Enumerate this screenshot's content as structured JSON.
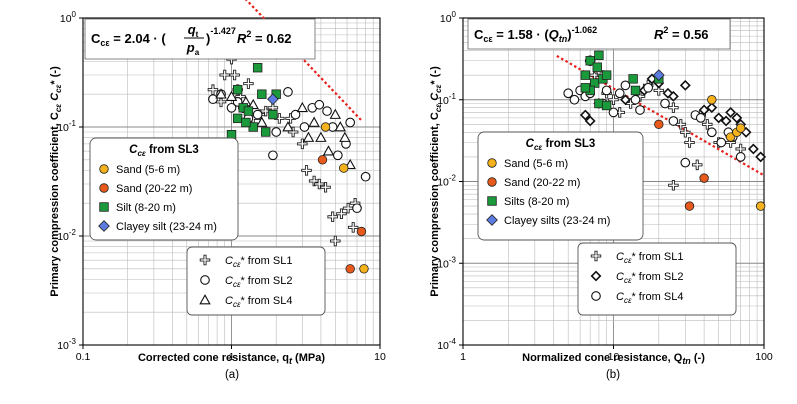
{
  "chart_data": [
    {
      "type": "scatter",
      "caption": "(a)",
      "xlabel": "Corrected cone resistance, q",
      "xlabel_sub": "t",
      "xlabel_unit": " (MPa)",
      "ylabel": "Primary compression coefficient, C",
      "ylabel_full": "Primary compression coefficient, Ccε Ccε* (-)",
      "xscale": "log",
      "yscale": "log",
      "xlim": [
        0.1,
        10
      ],
      "ylim": [
        0.001,
        1
      ],
      "xticks": [
        {
          "v": 0.1,
          "l": "0.1"
        },
        {
          "v": 1,
          "l": "1"
        },
        {
          "v": 10,
          "l": "10"
        }
      ],
      "yticks": [
        {
          "v": 0.001,
          "l": "10",
          "e": "-3"
        },
        {
          "v": 0.01,
          "l": "10",
          "e": "-2"
        },
        {
          "v": 0.1,
          "l": "10",
          "e": "-1"
        },
        {
          "v": 1,
          "l": "10",
          "e": "0"
        }
      ],
      "equation": {
        "lhs": "C",
        "lhs_sub": "cε",
        "coef": "2.04",
        "frac_num": "q",
        "frac_num_sub": "t",
        "frac_den": "p",
        "frac_den_sub": "a",
        "exponent": "-1.427",
        "r2_label": "R",
        "r2_value": "= 0.62"
      },
      "trendline": {
        "coef": 2.04,
        "exp": -1.427,
        "xrange": [
          1.0,
          7.5
        ],
        "color": "#e8201c"
      },
      "legend_sl3": {
        "title": "C",
        "title_sub": "cε",
        "title_rest": " from SL3",
        "entries": [
          {
            "label": "Sand (5-6 m)",
            "marker": "circle",
            "fill": "#f5b21c"
          },
          {
            "label": "Sand (20-22 m)",
            "marker": "circle",
            "fill": "#e85a1c"
          },
          {
            "label": "Silt (8-20 m)",
            "marker": "square",
            "fill": "#1a9a3a"
          },
          {
            "label": "Clayey silt (23-24 m)",
            "marker": "diamond",
            "fill": "#5b7be0"
          }
        ]
      },
      "legend_sl": {
        "entries": [
          {
            "label": "* from SL1",
            "sym": "C",
            "sub": "cε",
            "marker": "plus"
          },
          {
            "label": "* from SL2",
            "sym": "C",
            "sub": "cε",
            "marker": "open-circle"
          },
          {
            "label": "* from SL4",
            "sym": "C",
            "sub": "cε",
            "marker": "open-triangle"
          }
        ]
      },
      "series": [
        {
          "name": "Sand (5-6 m)",
          "marker": "circle",
          "fill": "#f5b21c",
          "points": [
            [
              4.3,
              0.1
            ],
            [
              5.7,
              0.042
            ],
            [
              7.8,
              0.005
            ]
          ]
        },
        {
          "name": "Sand (20-22 m)",
          "marker": "circle",
          "fill": "#e85a1c",
          "points": [
            [
              4.1,
              0.05
            ],
            [
              6.3,
              0.005
            ],
            [
              7.5,
              0.011
            ]
          ]
        },
        {
          "name": "Silt (8-20 m)",
          "marker": "square",
          "fill": "#1a9a3a",
          "points": [
            [
              1.1,
              0.22
            ],
            [
              1.2,
              0.15
            ],
            [
              1.5,
              0.35
            ],
            [
              1.6,
              0.2
            ],
            [
              1.3,
              0.14
            ],
            [
              1.1,
              0.12
            ],
            [
              1.7,
              0.09
            ],
            [
              1.4,
              0.1
            ],
            [
              1.9,
              0.13
            ],
            [
              1.0,
              0.085
            ],
            [
              2.0,
              0.2
            ],
            [
              1.25,
              0.11
            ]
          ]
        },
        {
          "name": "Clayey silt (23-24 m)",
          "marker": "diamond",
          "fill": "#5b7be0",
          "points": [
            [
              1.9,
              0.18
            ]
          ]
        },
        {
          "name": "SL1",
          "marker": "plus",
          "points": [
            [
              0.75,
              0.22
            ],
            [
              0.85,
              0.17
            ],
            [
              0.9,
              0.3
            ],
            [
              1.0,
              0.42
            ],
            [
              1.05,
              0.3
            ],
            [
              1.1,
              0.22
            ],
            [
              1.15,
              0.19
            ],
            [
              1.2,
              0.15
            ],
            [
              1.3,
              0.25
            ],
            [
              1.4,
              0.12
            ],
            [
              1.55,
              0.13
            ],
            [
              1.7,
              0.14
            ],
            [
              1.9,
              0.15
            ],
            [
              2.1,
              0.12
            ],
            [
              2.5,
              0.12
            ],
            [
              2.6,
              0.09
            ],
            [
              3.0,
              0.07
            ],
            [
              3.2,
              0.04
            ],
            [
              3.6,
              0.032
            ],
            [
              3.9,
              0.03
            ],
            [
              4.3,
              0.028
            ],
            [
              4.8,
              0.015
            ],
            [
              5.5,
              0.016
            ],
            [
              6.1,
              0.018
            ],
            [
              6.6,
              0.012
            ],
            [
              5.0,
              0.009
            ],
            [
              6.8,
              0.02
            ]
          ]
        },
        {
          "name": "SL2",
          "marker": "open-circle",
          "points": [
            [
              0.75,
              0.18
            ],
            [
              0.85,
              0.2
            ],
            [
              1.0,
              0.15
            ],
            [
              1.1,
              0.17
            ],
            [
              1.3,
              0.12
            ],
            [
              1.5,
              0.13
            ],
            [
              1.9,
              0.055
            ],
            [
              2.0,
              0.09
            ],
            [
              2.4,
              0.21
            ],
            [
              2.7,
              0.13
            ],
            [
              3.1,
              0.1
            ],
            [
              3.5,
              0.15
            ],
            [
              3.9,
              0.16
            ],
            [
              4.4,
              0.14
            ],
            [
              4.8,
              0.1
            ],
            [
              5.2,
              0.055
            ],
            [
              5.9,
              0.07
            ],
            [
              6.3,
              0.11
            ],
            [
              7.0,
              0.018
            ],
            [
              8.0,
              0.035
            ]
          ]
        },
        {
          "name": "SL4",
          "marker": "open-triangle",
          "points": [
            [
              0.85,
              0.2
            ],
            [
              1.0,
              0.19
            ],
            [
              1.25,
              0.17
            ],
            [
              1.4,
              0.16
            ],
            [
              1.6,
              0.11
            ],
            [
              2.4,
              0.1
            ],
            [
              3.0,
              0.15
            ],
            [
              3.3,
              0.08
            ],
            [
              3.6,
              0.11
            ],
            [
              4.0,
              0.08
            ],
            [
              4.5,
              0.06
            ],
            [
              5.0,
              0.13
            ],
            [
              5.4,
              0.1
            ],
            [
              5.8,
              0.08
            ],
            [
              6.3,
              0.045
            ]
          ]
        }
      ]
    },
    {
      "type": "scatter",
      "caption": "(b)",
      "xlabel": "Normalized cone resistance, Q",
      "xlabel_sub": "tn",
      "xlabel_unit": " (-)",
      "ylabel": "Primary compression coefficient, C",
      "ylabel_full": "Primary compression coefficient, Ccε Ccε* (-)",
      "xscale": "log",
      "yscale": "log",
      "xlim": [
        1,
        100
      ],
      "ylim": [
        0.0001,
        1
      ],
      "xticks": [
        {
          "v": 1,
          "l": "1"
        },
        {
          "v": 10,
          "l": "10"
        },
        {
          "v": 100,
          "l": "100"
        }
      ],
      "yticks": [
        {
          "v": 0.0001,
          "l": "10",
          "e": "-4"
        },
        {
          "v": 0.001,
          "l": "10",
          "e": "-3"
        },
        {
          "v": 0.01,
          "l": "10",
          "e": "-2"
        },
        {
          "v": 0.1,
          "l": "10",
          "e": "-1"
        },
        {
          "v": 1,
          "l": "10",
          "e": "0"
        }
      ],
      "equation": {
        "lhs": "C",
        "lhs_sub": "cε",
        "coef": "= 1.58 · (",
        "var": "Q",
        "var_sub": "tn",
        "close": ")",
        "exponent": "-1.062",
        "r2_label": "R",
        "r2_value": "= 0.56"
      },
      "trendline": {
        "coef": 1.58,
        "exp": -1.062,
        "xrange": [
          4.2,
          100
        ],
        "color": "#e8201c"
      },
      "legend_sl3": {
        "title": "C",
        "title_sub": "cε",
        "title_rest": " from SL3",
        "entries": [
          {
            "label": "Sand (5-6 m)",
            "marker": "circle",
            "fill": "#f5b21c"
          },
          {
            "label": "Sand (20-22 m)",
            "marker": "circle",
            "fill": "#e85a1c"
          },
          {
            "label": "Silts (8-20 m)",
            "marker": "square",
            "fill": "#1a9a3a"
          },
          {
            "label": "Clayey silts (23-24 m)",
            "marker": "diamond",
            "fill": "#5b7be0"
          }
        ]
      },
      "legend_sl": {
        "entries": [
          {
            "label": "* from SL1",
            "sym": "C",
            "sub": "cε",
            "marker": "plus"
          },
          {
            "label": "* from SL2",
            "sym": "C",
            "sub": "cε",
            "marker": "open-diamond"
          },
          {
            "label": "* from SL4",
            "sym": "C",
            "sub": "cε",
            "marker": "open-circle"
          }
        ]
      },
      "series": [
        {
          "name": "Sand (5-6 m)",
          "marker": "circle",
          "fill": "#f5b21c",
          "points": [
            [
              45,
              0.1
            ],
            [
              60,
              0.035
            ],
            [
              66,
              0.04
            ],
            [
              70,
              0.045
            ],
            [
              95,
              0.005
            ]
          ]
        },
        {
          "name": "Sand (20-22 m)",
          "marker": "circle",
          "fill": "#e85a1c",
          "points": [
            [
              20,
              0.05
            ],
            [
              32,
              0.005
            ],
            [
              40,
              0.011
            ]
          ]
        },
        {
          "name": "Silts (8-20 m)",
          "marker": "square",
          "fill": "#1a9a3a",
          "points": [
            [
              6.5,
              0.2
            ],
            [
              7.0,
              0.3
            ],
            [
              7.5,
              0.16
            ],
            [
              7.8,
              0.25
            ],
            [
              8.0,
              0.35
            ],
            [
              8.5,
              0.18
            ],
            [
              9.0,
              0.2
            ],
            [
              7.0,
              0.13
            ],
            [
              8.0,
              0.09
            ],
            [
              9.0,
              0.085
            ],
            [
              13.5,
              0.18
            ],
            [
              14,
              0.13
            ],
            [
              20,
              0.18
            ],
            [
              6.5,
              0.14
            ]
          ]
        },
        {
          "name": "Clayey silts (23-24 m)",
          "marker": "diamond",
          "fill": "#5b7be0",
          "points": [
            [
              20,
              0.2
            ]
          ]
        },
        {
          "name": "SL1",
          "marker": "plus",
          "points": [
            [
              7.0,
              0.3
            ],
            [
              7.5,
              0.2
            ],
            [
              8.0,
              0.22
            ],
            [
              9.0,
              0.12
            ],
            [
              10,
              0.1
            ],
            [
              11,
              0.07
            ],
            [
              13,
              0.09
            ],
            [
              15,
              0.11
            ],
            [
              17,
              0.15
            ],
            [
              20,
              0.13
            ],
            [
              25,
              0.08
            ],
            [
              28,
              0.05
            ],
            [
              30,
              0.04
            ],
            [
              32,
              0.03
            ],
            [
              38,
              0.065
            ],
            [
              42,
              0.05
            ],
            [
              50,
              0.03
            ],
            [
              36,
              0.016
            ],
            [
              25,
              0.009
            ],
            [
              60,
              0.03
            ],
            [
              70,
              0.025
            ]
          ]
        },
        {
          "name": "SL2",
          "marker": "open-diamond",
          "points": [
            [
              6.5,
              0.065
            ],
            [
              7.0,
              0.055
            ],
            [
              8.0,
              0.09
            ],
            [
              12,
              0.1
            ],
            [
              16,
              0.13
            ],
            [
              18,
              0.18
            ],
            [
              20,
              0.16
            ],
            [
              23,
              0.12
            ],
            [
              25,
              0.11
            ],
            [
              30,
              0.15
            ],
            [
              40,
              0.075
            ],
            [
              45,
              0.08
            ],
            [
              50,
              0.06
            ],
            [
              56,
              0.055
            ],
            [
              60,
              0.07
            ],
            [
              66,
              0.06
            ],
            [
              70,
              0.05
            ],
            [
              76,
              0.04
            ],
            [
              85,
              0.025
            ],
            [
              95,
              0.02
            ],
            [
              60,
              0.035
            ]
          ]
        },
        {
          "name": "SL4",
          "marker": "open-circle",
          "points": [
            [
              5.0,
              0.12
            ],
            [
              5.5,
              0.1
            ],
            [
              6.0,
              0.13
            ],
            [
              6.5,
              0.11
            ],
            [
              7.0,
              0.12
            ],
            [
              8.5,
              0.09
            ],
            [
              9.0,
              0.13
            ],
            [
              10,
              0.07
            ],
            [
              11,
              0.12
            ],
            [
              12,
              0.15
            ],
            [
              14,
              0.1
            ],
            [
              15,
              0.075
            ],
            [
              17,
              0.14
            ],
            [
              22,
              0.09
            ],
            [
              25,
              0.055
            ],
            [
              30,
              0.017
            ],
            [
              35,
              0.065
            ],
            [
              38,
              0.06
            ],
            [
              45,
              0.04
            ],
            [
              52,
              0.03
            ],
            [
              58,
              0.04
            ],
            [
              62,
              0.035
            ],
            [
              70,
              0.02
            ]
          ]
        }
      ]
    }
  ]
}
